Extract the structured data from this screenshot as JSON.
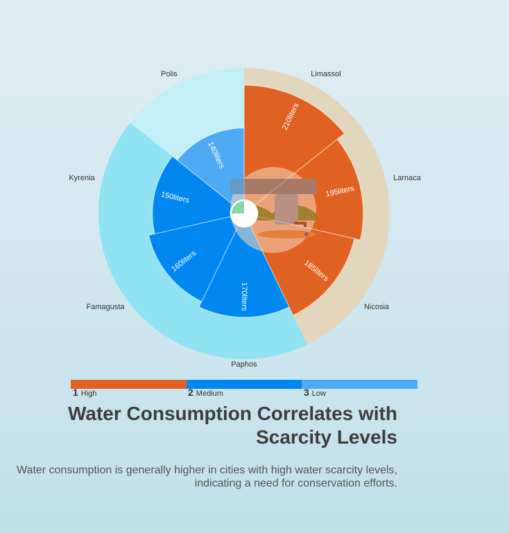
{
  "chart_data": {
    "type": "radial-bar",
    "title": "Water Consumption Correlates with Scarcity Levels",
    "subtitle": "Water consumption is generally higher in cities with high water scarcity levels, indicating a need for conservation efforts.",
    "unit": "liters",
    "categories": [
      "Limassol",
      "Larnaca",
      "Nicosia",
      "Paphos",
      "Famagusta",
      "Kyrenia",
      "Polis"
    ],
    "values": [
      210,
      195,
      185,
      170,
      160,
      150,
      140
    ],
    "scarcity_level": [
      "High",
      "High",
      "High",
      "Medium",
      "Medium",
      "Medium",
      "Low"
    ],
    "scarcity_groups": [
      {
        "level": 1,
        "label": "High",
        "color": "#e06223"
      },
      {
        "level": 2,
        "label": "Medium",
        "color": "#0088f0"
      },
      {
        "level": 3,
        "label": "Low",
        "color": "#4faaf4"
      }
    ],
    "outer_ring_colors": {
      "High": "#e2d6bd",
      "Medium": "#8fe3f2",
      "Low": "#c2f0f6"
    }
  }
}
